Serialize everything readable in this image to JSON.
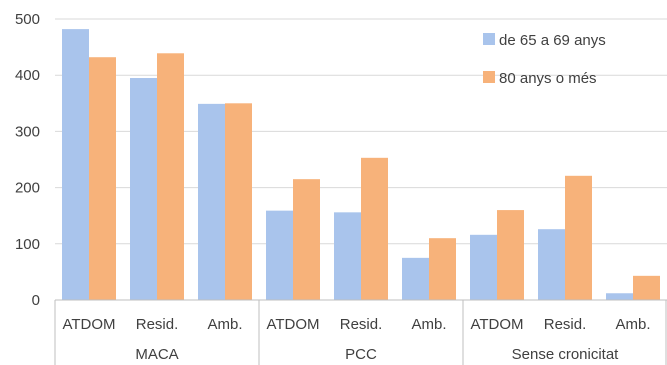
{
  "chart_data": {
    "type": "bar",
    "groups": [
      {
        "label": "MACA",
        "categories": [
          "ATDOM",
          "Resid.",
          "Amb."
        ]
      },
      {
        "label": "PCC",
        "categories": [
          "ATDOM",
          "Resid.",
          "Amb."
        ]
      },
      {
        "label": "Sense cronicitat",
        "categories": [
          "ATDOM",
          "Resid.",
          "Amb."
        ]
      }
    ],
    "categories": [
      "ATDOM",
      "Resid.",
      "Amb.",
      "ATDOM",
      "Resid.",
      "Amb.",
      "ATDOM",
      "Resid.",
      "Amb."
    ],
    "series": [
      {
        "name": "de 65 a 69 anys",
        "color": "#a9c4ec",
        "values": [
          482,
          395,
          349,
          159,
          156,
          75,
          116,
          126,
          12
        ]
      },
      {
        "name": "80 anys o més",
        "color": "#f7b27a",
        "values": [
          432,
          439,
          350,
          215,
          253,
          110,
          160,
          221,
          43
        ]
      }
    ],
    "ylim": [
      0,
      500
    ],
    "yticks": [
      0,
      100,
      200,
      300,
      400,
      500
    ],
    "grid": true,
    "legend_position": "top-right"
  }
}
